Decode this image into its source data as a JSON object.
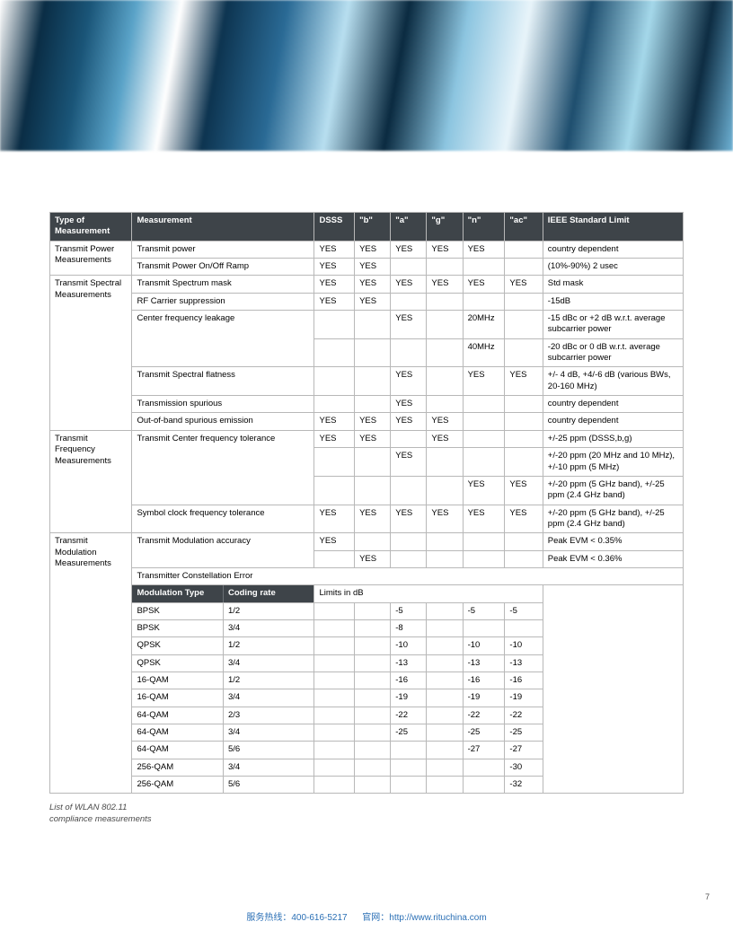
{
  "header_columns": [
    "Type of Measurement",
    "Measurement",
    "DSSS",
    "\"b\"",
    "\"a\"",
    "\"g\"",
    "\"n\"",
    "\"ac\"",
    "IEEE Standard Limit"
  ],
  "groups": [
    {
      "label": "Transmit Power Measurements",
      "rows": [
        {
          "m": "Transmit power",
          "c": [
            "YES",
            "YES",
            "YES",
            "YES",
            "YES",
            ""
          ],
          "lim": "country dependent"
        },
        {
          "m": "Transmit Power On/Off Ramp",
          "c": [
            "YES",
            "YES",
            "",
            "",
            "",
            ""
          ],
          "lim": "(10%-90%) 2 usec"
        }
      ]
    },
    {
      "label": "Transmit Spectral Measurements",
      "rows": [
        {
          "m": "Transmit Spectrum mask",
          "c": [
            "YES",
            "YES",
            "YES",
            "YES",
            "YES",
            "YES"
          ],
          "lim": "Std mask"
        },
        {
          "m": "RF Carrier suppression",
          "c": [
            "YES",
            "YES",
            "",
            "",
            "",
            ""
          ],
          "lim": "-15dB"
        },
        {
          "m": "Center frequency leakage",
          "m_rowspan": 2,
          "c": [
            "",
            "",
            "YES",
            "",
            "20MHz",
            ""
          ],
          "lim": "-15 dBc or +2 dB w.r.t. average subcarrier power"
        },
        {
          "c": [
            "",
            "",
            "",
            "",
            "40MHz",
            ""
          ],
          "lim": "-20 dBc or 0 dB w.r.t. average subcarrier power"
        },
        {
          "m": "Transmit Spectral flatness",
          "c": [
            "",
            "",
            "YES",
            "",
            "YES",
            "YES"
          ],
          "lim": "+/- 4 dB, +4/-6 dB (various BWs, 20-160 MHz)"
        },
        {
          "m": "Transmission spurious",
          "c": [
            "",
            "",
            "YES",
            "",
            "",
            ""
          ],
          "lim": "country dependent"
        },
        {
          "m": "Out-of-band spurious emission",
          "c": [
            "YES",
            "YES",
            "YES",
            "YES",
            "",
            ""
          ],
          "lim": "country dependent"
        }
      ]
    },
    {
      "label": "Transmit Frequency Measurements",
      "rows": [
        {
          "m": "Transmit Center frequency tolerance",
          "m_rowspan": 3,
          "c": [
            "YES",
            "YES",
            "",
            "YES",
            "",
            ""
          ],
          "lim": "+/-25 ppm (DSSS,b,g)"
        },
        {
          "c": [
            "",
            "",
            "YES",
            "",
            "",
            ""
          ],
          "lim": "+/-20 ppm (20 MHz and 10 MHz), +/-10 ppm (5 MHz)"
        },
        {
          "c": [
            "",
            "",
            "",
            "",
            "YES",
            "YES"
          ],
          "lim": "+/-20 ppm (5 GHz band), +/-25 ppm (2.4 GHz band)"
        },
        {
          "m": "Symbol clock frequency tolerance",
          "c": [
            "YES",
            "YES",
            "YES",
            "YES",
            "YES",
            "YES"
          ],
          "lim": "+/-20 ppm (5 GHz band), +/-25 ppm (2.4 GHz band)"
        }
      ]
    },
    {
      "label": "Transmit Modulation Measurements",
      "rows": [
        {
          "m": "Transmit Modulation accuracy",
          "m_rowspan": 2,
          "c": [
            "YES",
            "",
            "",
            "",
            "",
            ""
          ],
          "lim": "Peak EVM < 0.35%"
        },
        {
          "c": [
            "",
            "YES",
            "",
            "",
            "",
            ""
          ],
          "lim": "Peak EVM < 0.36%"
        },
        {
          "m": "Transmitter Constellation Error",
          "fullrow": true
        }
      ]
    }
  ],
  "sub_headers": [
    "Modulation Type",
    "Coding rate",
    "Limits in dB"
  ],
  "mod_rows": [
    {
      "t": "BPSK",
      "r": "1/2",
      "v": [
        "",
        "",
        "-5",
        "",
        "-5",
        "-5"
      ]
    },
    {
      "t": "BPSK",
      "r": "3/4",
      "v": [
        "",
        "",
        "-8",
        "",
        "",
        ""
      ]
    },
    {
      "t": "QPSK",
      "r": "1/2",
      "v": [
        "",
        "",
        "-10",
        "",
        "-10",
        "-10"
      ]
    },
    {
      "t": "QPSK",
      "r": "3/4",
      "v": [
        "",
        "",
        "-13",
        "",
        "-13",
        "-13"
      ]
    },
    {
      "t": "16-QAM",
      "r": "1/2",
      "v": [
        "",
        "",
        "-16",
        "",
        "-16",
        "-16"
      ]
    },
    {
      "t": "16-QAM",
      "r": "3/4",
      "v": [
        "",
        "",
        "-19",
        "",
        "-19",
        "-19"
      ]
    },
    {
      "t": "64-QAM",
      "r": "2/3",
      "v": [
        "",
        "",
        "-22",
        "",
        "-22",
        "-22"
      ]
    },
    {
      "t": "64-QAM",
      "r": "3/4",
      "v": [
        "",
        "",
        "-25",
        "",
        "-25",
        "-25"
      ]
    },
    {
      "t": "64-QAM",
      "r": "5/6",
      "v": [
        "",
        "",
        "",
        "",
        "-27",
        "-27"
      ]
    },
    {
      "t": "256-QAM",
      "r": "3/4",
      "v": [
        "",
        "",
        "",
        "",
        "",
        "-30"
      ]
    },
    {
      "t": "256-QAM",
      "r": "5/6",
      "v": [
        "",
        "",
        "",
        "",
        "",
        "-32"
      ]
    }
  ],
  "caption_l1": "List of WLAN 802.11",
  "caption_l2": "compliance measurements",
  "footer": {
    "hotline_lbl": "服务热线：",
    "hotline": "400-616-5217",
    "site_lbl": "官网：",
    "site": "http://www.rituchina.com"
  },
  "page_number": "7",
  "colors": {
    "header_bg": "#3e4449",
    "border": "#b8b8b8",
    "link": "#2a6fb5"
  }
}
